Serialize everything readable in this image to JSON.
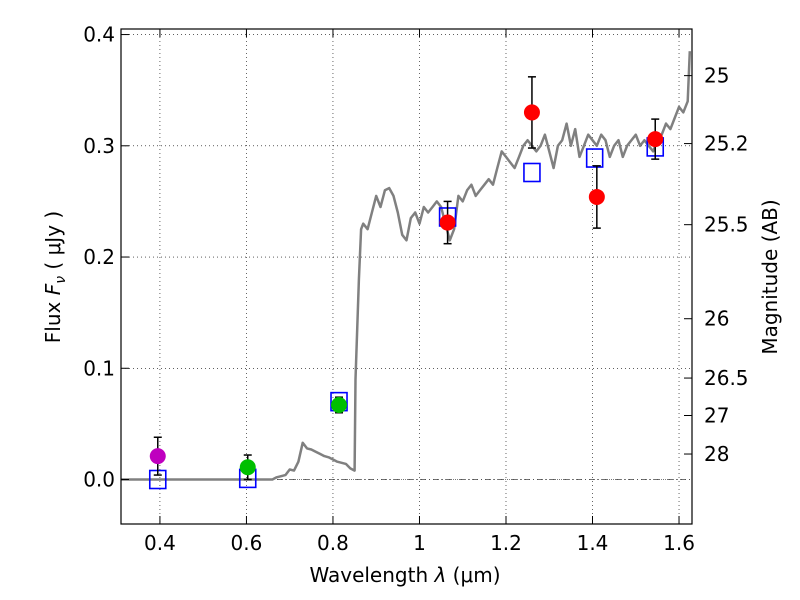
{
  "chart_data": {
    "type": "scatter",
    "title": "",
    "xlabel": {
      "prefix": "Wavelength  ",
      "symbol": "λ",
      "unit": " (μm)"
    },
    "ylabel": {
      "prefix": "Flux  ",
      "symbol": "F",
      "subscript": "ν",
      "unit": "  ( μJy )"
    },
    "y2label": "Magnitude (AB)",
    "xlim": [
      0.31,
      1.63
    ],
    "ylim": [
      -0.04,
      0.405
    ],
    "grid": true,
    "x_ticks": [
      {
        "value": 0.4,
        "label": "0.4"
      },
      {
        "value": 0.6,
        "label": "0.6"
      },
      {
        "value": 0.8,
        "label": "0.8"
      },
      {
        "value": 1.0,
        "label": "1"
      },
      {
        "value": 1.2,
        "label": "1.2"
      },
      {
        "value": 1.4,
        "label": "1.4"
      },
      {
        "value": 1.6,
        "label": "1.6"
      }
    ],
    "y_ticks": [
      {
        "value": 0.0,
        "label": "0.0"
      },
      {
        "value": 0.1,
        "label": "0.1"
      },
      {
        "value": 0.2,
        "label": "0.2"
      },
      {
        "value": 0.3,
        "label": "0.3"
      },
      {
        "value": 0.4,
        "label": "0.4"
      }
    ],
    "magnitude_ticks": [
      {
        "value": 25,
        "label": "25"
      },
      {
        "value": 25.2,
        "label": "25.2"
      },
      {
        "value": 25.5,
        "label": "25.5"
      },
      {
        "value": 26,
        "label": "26"
      },
      {
        "value": 26.5,
        "label": "26.5"
      },
      {
        "value": 27,
        "label": "27"
      },
      {
        "value": 28,
        "label": "28"
      }
    ],
    "series": [
      {
        "name": "observed-photometry",
        "kind": "points-with-errorbars",
        "points": [
          {
            "x": 0.395,
            "y": 0.021,
            "err": 0.017,
            "color": "#bf00bf"
          },
          {
            "x": 0.603,
            "y": 0.011,
            "err": 0.011,
            "color": "#00bf00"
          },
          {
            "x": 0.814,
            "y": 0.067,
            "err": 0.007,
            "color": "#00bf00"
          },
          {
            "x": 1.065,
            "y": 0.231,
            "err": 0.019,
            "color": "#ff0000"
          },
          {
            "x": 1.26,
            "y": 0.33,
            "err": 0.032,
            "color": "#ff0000"
          },
          {
            "x": 1.41,
            "y": 0.254,
            "err": 0.028,
            "color": "#ff0000"
          },
          {
            "x": 1.545,
            "y": 0.306,
            "err": 0.018,
            "color": "#ff0000"
          }
        ]
      },
      {
        "name": "model-photometry",
        "kind": "open-squares",
        "color": "#0000ff",
        "points": [
          {
            "x": 0.395,
            "y": 0.0
          },
          {
            "x": 0.603,
            "y": 0.001
          },
          {
            "x": 0.814,
            "y": 0.07
          },
          {
            "x": 1.065,
            "y": 0.236
          },
          {
            "x": 1.26,
            "y": 0.276
          },
          {
            "x": 1.405,
            "y": 0.289
          },
          {
            "x": 1.545,
            "y": 0.299
          }
        ]
      },
      {
        "name": "model-spectrum",
        "kind": "line",
        "color": "#808080",
        "x": [
          0.31,
          0.66,
          0.67,
          0.69,
          0.7,
          0.71,
          0.72,
          0.73,
          0.74,
          0.75,
          0.76,
          0.77,
          0.78,
          0.79,
          0.8,
          0.81,
          0.82,
          0.83,
          0.84,
          0.85,
          0.852,
          0.86,
          0.865,
          0.87,
          0.88,
          0.89,
          0.9,
          0.91,
          0.92,
          0.93,
          0.94,
          0.95,
          0.96,
          0.97,
          0.98,
          0.99,
          1.0,
          1.01,
          1.02,
          1.03,
          1.04,
          1.05,
          1.06,
          1.07,
          1.08,
          1.09,
          1.1,
          1.11,
          1.12,
          1.13,
          1.14,
          1.15,
          1.16,
          1.17,
          1.18,
          1.19,
          1.2,
          1.21,
          1.22,
          1.23,
          1.24,
          1.25,
          1.26,
          1.27,
          1.28,
          1.29,
          1.3,
          1.31,
          1.32,
          1.33,
          1.34,
          1.35,
          1.36,
          1.37,
          1.38,
          1.39,
          1.4,
          1.41,
          1.42,
          1.43,
          1.44,
          1.45,
          1.46,
          1.47,
          1.48,
          1.49,
          1.5,
          1.51,
          1.52,
          1.53,
          1.54,
          1.55,
          1.56,
          1.57,
          1.58,
          1.59,
          1.6,
          1.61,
          1.62,
          1.625
        ],
        "y": [
          0.0,
          0.0,
          0.002,
          0.004,
          0.009,
          0.008,
          0.016,
          0.033,
          0.028,
          0.027,
          0.025,
          0.023,
          0.021,
          0.02,
          0.018,
          0.016,
          0.015,
          0.014,
          0.01,
          0.008,
          0.09,
          0.18,
          0.225,
          0.23,
          0.225,
          0.24,
          0.255,
          0.245,
          0.26,
          0.262,
          0.255,
          0.24,
          0.22,
          0.215,
          0.235,
          0.24,
          0.23,
          0.245,
          0.24,
          0.245,
          0.25,
          0.245,
          0.23,
          0.215,
          0.225,
          0.255,
          0.25,
          0.26,
          0.265,
          0.255,
          0.26,
          0.265,
          0.27,
          0.265,
          0.28,
          0.295,
          0.29,
          0.285,
          0.28,
          0.29,
          0.3,
          0.305,
          0.3,
          0.295,
          0.3,
          0.31,
          0.295,
          0.28,
          0.3,
          0.305,
          0.32,
          0.3,
          0.315,
          0.29,
          0.3,
          0.31,
          0.305,
          0.3,
          0.31,
          0.305,
          0.29,
          0.3,
          0.305,
          0.29,
          0.3,
          0.305,
          0.31,
          0.3,
          0.305,
          0.3,
          0.295,
          0.305,
          0.31,
          0.32,
          0.315,
          0.325,
          0.335,
          0.33,
          0.34,
          0.385
        ]
      }
    ]
  }
}
